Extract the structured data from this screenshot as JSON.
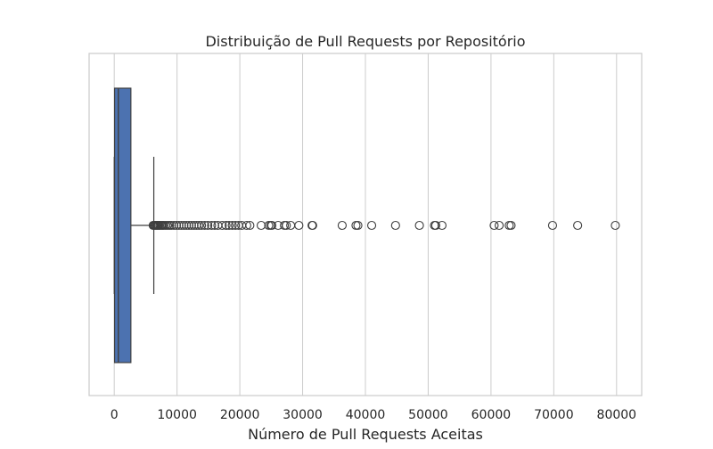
{
  "chart_data": {
    "type": "boxplot",
    "orientation": "horizontal",
    "title": "Distribuição de Pull Requests por Repositório",
    "xlabel": "Número de Pull Requests Aceitas",
    "ylabel": "",
    "xlim": [
      -4000,
      84000
    ],
    "x_ticks": [
      0,
      10000,
      20000,
      30000,
      40000,
      50000,
      60000,
      70000,
      80000
    ],
    "x_tick_labels": [
      "0",
      "10000",
      "20000",
      "30000",
      "40000",
      "50000",
      "60000",
      "70000",
      "80000"
    ],
    "grid": "vertical",
    "box": {
      "whisker_low": 0,
      "q1": 50,
      "median": 650,
      "q3": 2650,
      "whisker_high": 6300
    },
    "outliers": [
      6200,
      6350,
      6500,
      6650,
      6800,
      6950,
      7100,
      7300,
      7500,
      7700,
      7900,
      8200,
      8500,
      8800,
      9100,
      9500,
      9900,
      10300,
      10700,
      11100,
      11500,
      11900,
      12300,
      12700,
      13100,
      13500,
      13900,
      14400,
      14900,
      15500,
      16000,
      16500,
      17200,
      17800,
      18300,
      18800,
      19300,
      19800,
      20300,
      21100,
      21600,
      23400,
      24600,
      24900,
      25100,
      26100,
      27100,
      27400,
      28100,
      29400,
      31500,
      31600,
      36300,
      38500,
      38800,
      41000,
      44800,
      48600,
      51000,
      51200,
      52200,
      60500,
      61300,
      62900,
      63200,
      69800,
      73800,
      79800
    ],
    "colors": {
      "box_fill": "#4c72b0",
      "line": "#3f3f3f",
      "grid": "#cccccc",
      "frame": "#cccccc",
      "text": "#262626"
    }
  }
}
